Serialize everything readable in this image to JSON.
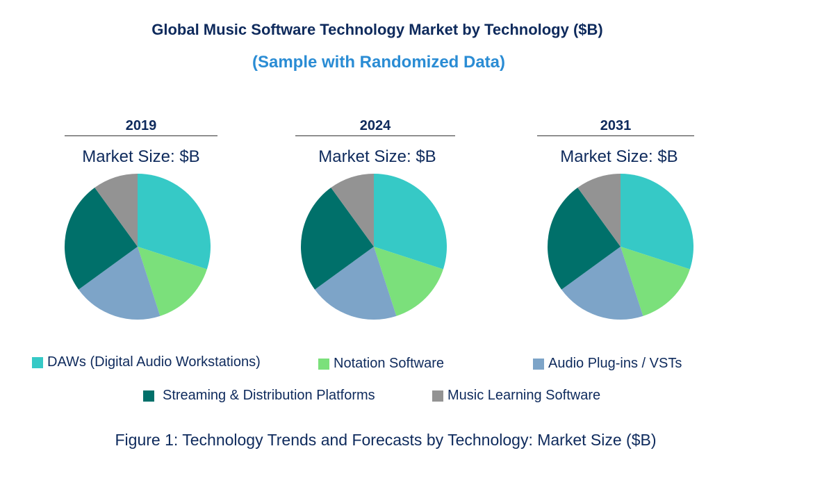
{
  "chart_data": {
    "type": "pie",
    "title": "Global Music Software Technology Market by Technology ($B)",
    "subtitle": "(Sample with Randomized Data)",
    "caption": "Figure 1: Technology Trends and Forecasts by Technology: Market Size ($B)",
    "categories": [
      "DAWs (Digital Audio Workstations)",
      "Notation Software",
      "Audio Plug-ins / VSTs",
      "Streaming & Distribution Platforms",
      "Music Learning Software"
    ],
    "colors": [
      "#36c9c6",
      "#7be07b",
      "#7da4c8",
      "#00706a",
      "#939393"
    ],
    "pies": [
      {
        "year": "2019",
        "label": "Market Size: $B",
        "values": [
          30,
          15,
          20,
          25,
          10
        ]
      },
      {
        "year": "2024",
        "label": "Market Size: $B",
        "values": [
          30,
          15,
          20,
          25,
          10
        ]
      },
      {
        "year": "2031",
        "label": "Market Size: $B",
        "values": [
          30,
          15,
          20,
          25,
          10
        ]
      }
    ]
  }
}
